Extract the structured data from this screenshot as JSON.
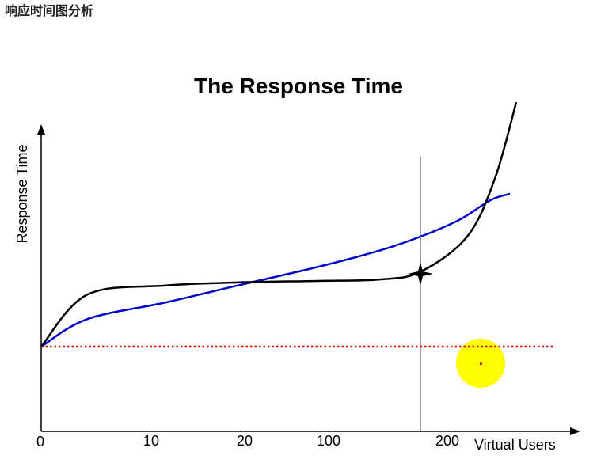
{
  "page_heading": "响应时间图分析",
  "chart_data": {
    "type": "line",
    "title": "The Response Time",
    "xlabel": "Virtual Users",
    "ylabel": "Response Time",
    "x_tick_labels": [
      "0",
      "10",
      "20",
      "100",
      "200"
    ],
    "grid": false,
    "legend": "none",
    "series": [
      {
        "color": "#0000cc",
        "shape": "steady-rise",
        "values": [
          0,
          0.18,
          0.29,
          0.4,
          0.52,
          0.63,
          0.72,
          0.83,
          0.96,
          1.0
        ]
      },
      {
        "color": "#000000",
        "shape": "knee",
        "values": [
          0,
          0.34,
          0.4,
          0.42,
          0.43,
          0.44,
          0.49,
          0.72,
          1.1,
          1.6
        ]
      },
      {
        "color": "#dd0000",
        "style": "dotted",
        "shape": "baseline",
        "values": [
          0,
          0,
          0,
          0,
          0,
          0,
          0,
          0,
          0,
          0
        ]
      }
    ],
    "annotations": [
      {
        "kind": "vertical-marker-line",
        "color": "#333333"
      },
      {
        "kind": "star-marker",
        "color": "#000000"
      },
      {
        "kind": "highlight-circle",
        "color": "#ffff00"
      }
    ]
  }
}
